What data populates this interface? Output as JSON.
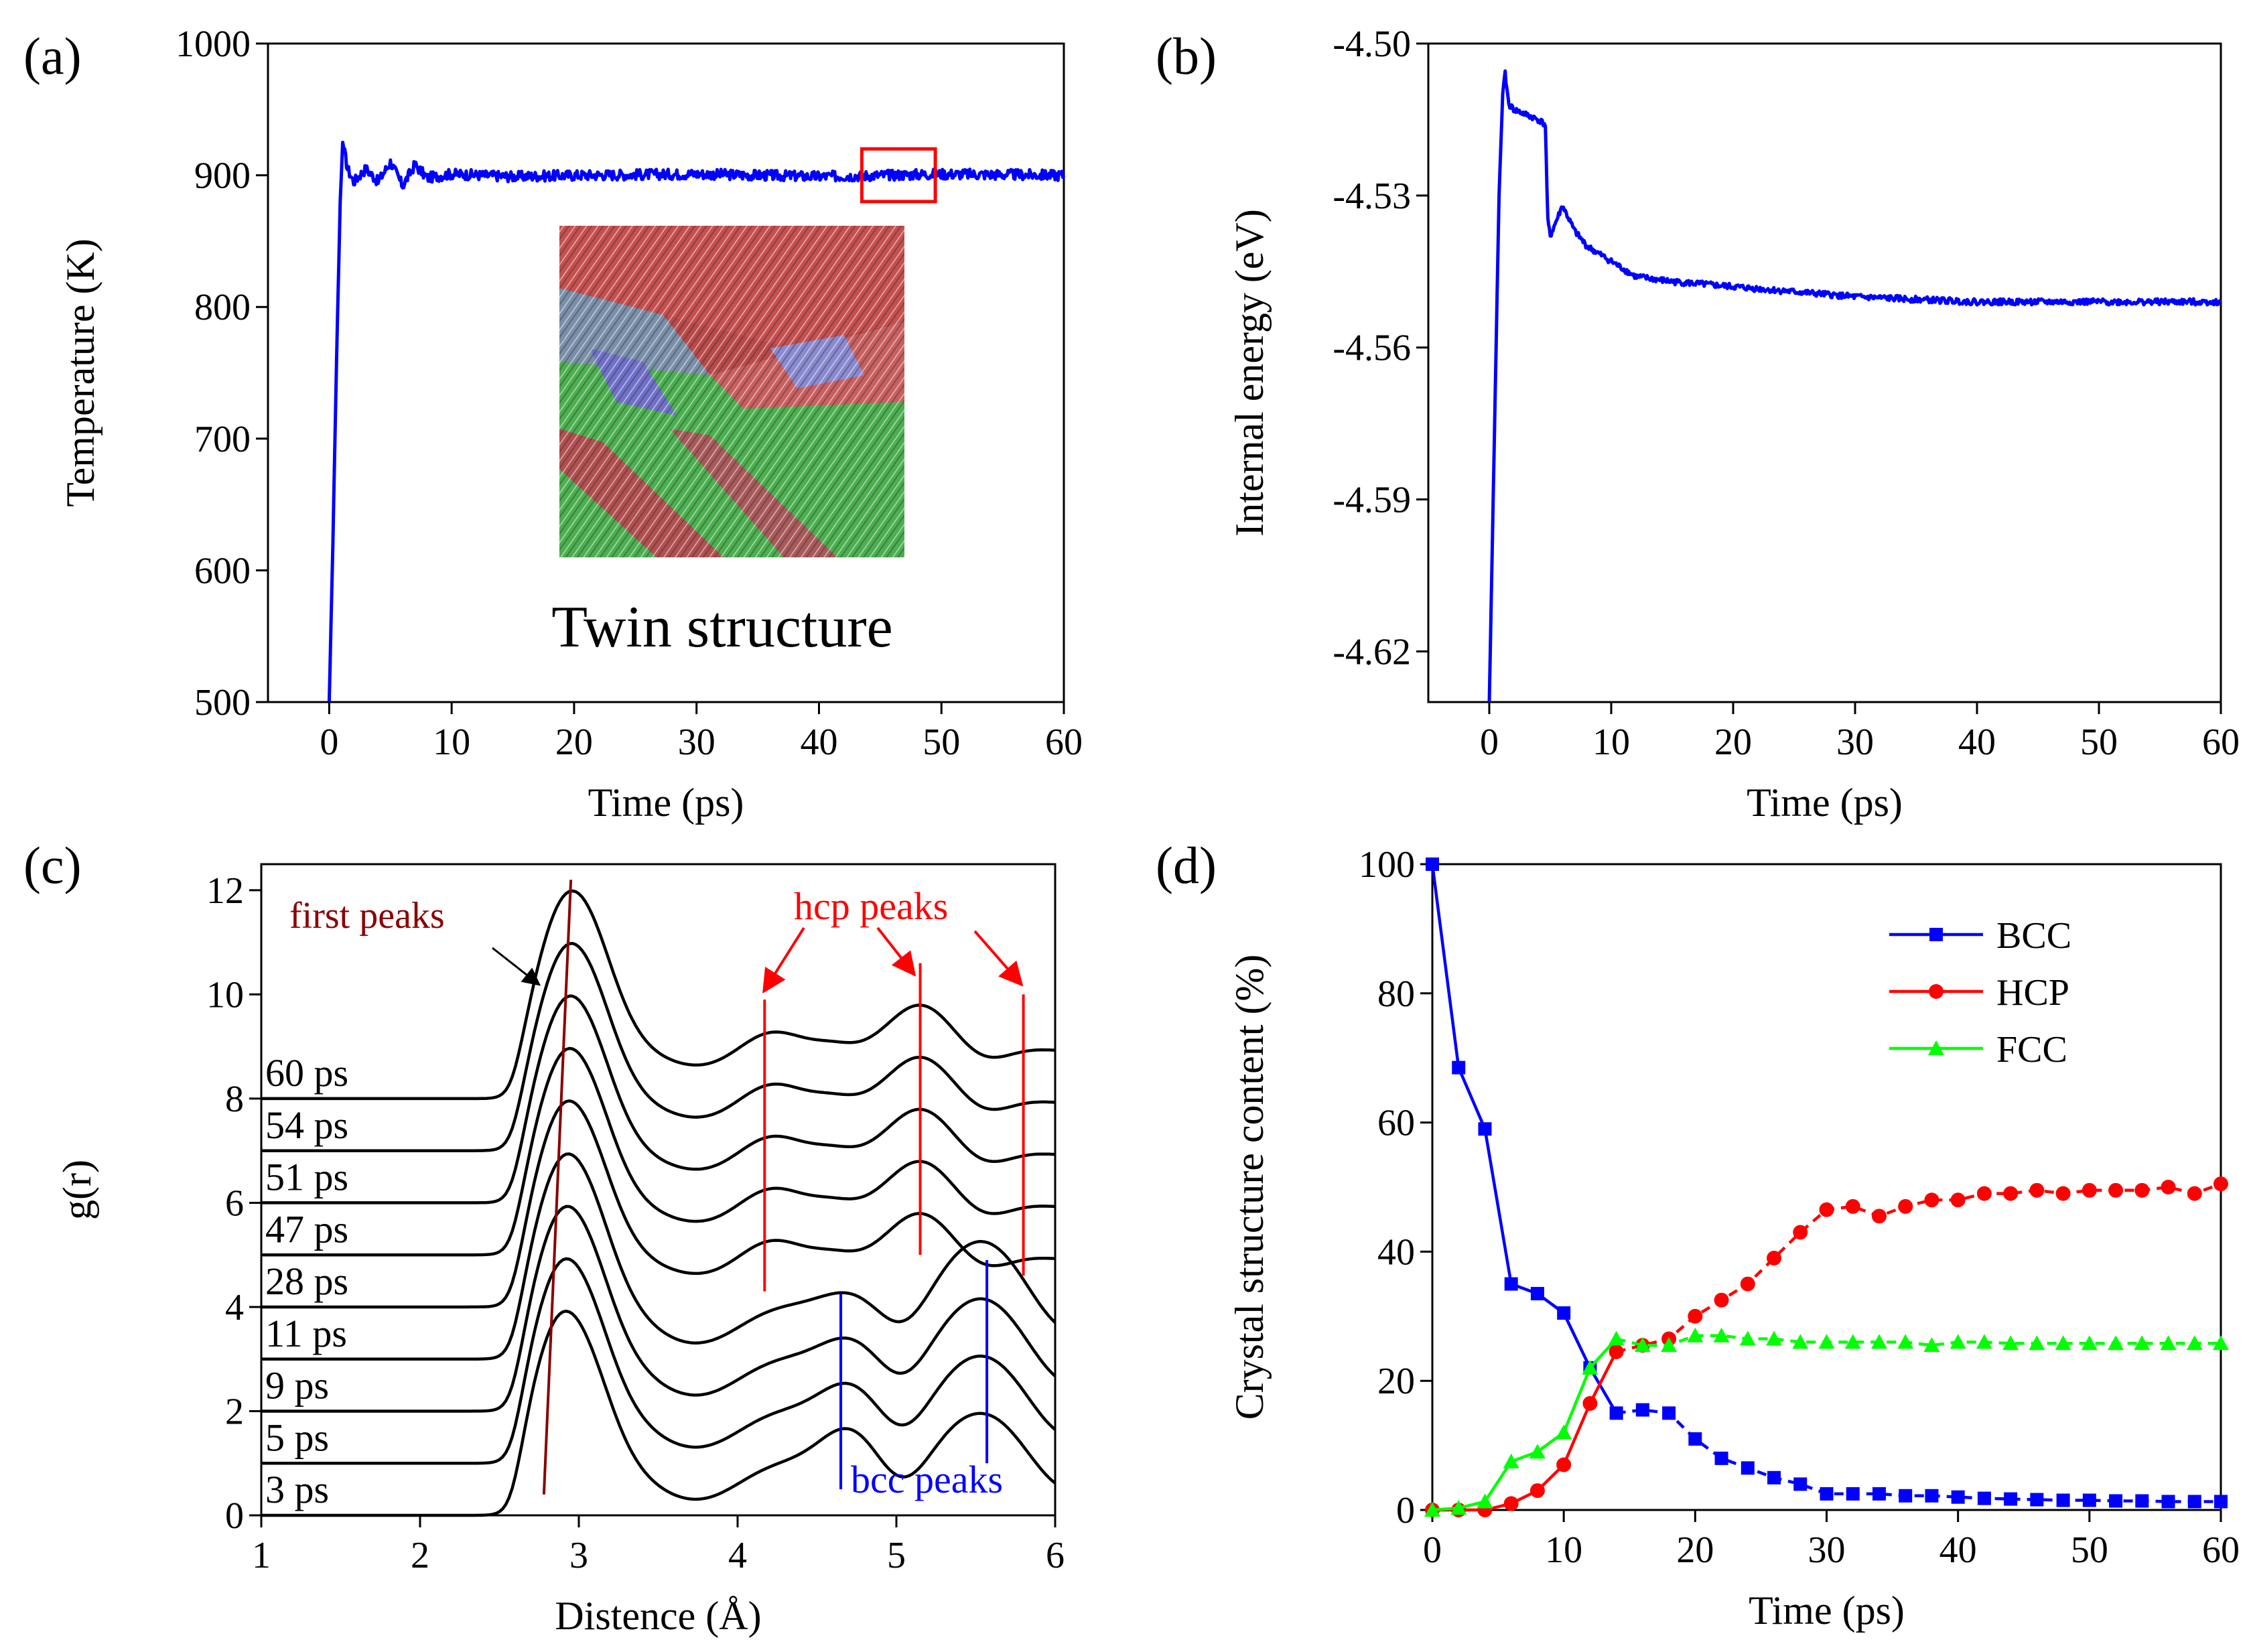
{
  "chart_data": [
    {
      "id": "a",
      "panel_label": "(a)",
      "type": "line",
      "xlabel": "Time (ps)",
      "ylabel": "Temperature (K)",
      "xlim": [
        -5,
        60
      ],
      "ylim": [
        500,
        1000
      ],
      "xticks": [
        0,
        10,
        20,
        30,
        40,
        50,
        60
      ],
      "yticks": [
        500,
        600,
        700,
        800,
        900,
        1000
      ],
      "xtick_labels": [
        "0",
        "10",
        "20",
        "30",
        "40",
        "50",
        "60"
      ],
      "ytick_labels": [
        "500",
        "600",
        "700",
        "800",
        "900",
        "1000"
      ],
      "series": [
        {
          "name": "Temperature",
          "color": "#0000ff",
          "x": [
            0,
            0.3,
            0.6,
            0.9,
            1.1,
            1.5,
            2,
            3,
            4,
            5,
            6,
            7,
            8,
            10,
            15,
            20,
            30,
            40,
            50,
            60
          ],
          "y": [
            500,
            620,
            760,
            880,
            925,
            905,
            895,
            905,
            895,
            910,
            892,
            908,
            898,
            901,
            899,
            900,
            901,
            899,
            901,
            900
          ],
          "noise": 4
        }
      ],
      "inset": {
        "label": "Twin structure"
      },
      "highlight_box": {
        "x": [
          43.5,
          49.5
        ],
        "y": [
          880,
          920
        ],
        "color": "#ff0000"
      }
    },
    {
      "id": "b",
      "panel_label": "(b)",
      "type": "line",
      "xlabel": "Time (ps)",
      "ylabel": "Internal energy (eV)",
      "xlim": [
        -5,
        60
      ],
      "ylim": [
        -4.63,
        -4.5
      ],
      "xticks": [
        0,
        10,
        20,
        30,
        40,
        50,
        60
      ],
      "yticks": [
        -4.62,
        -4.59,
        -4.56,
        -4.53,
        -4.5
      ],
      "xtick_labels": [
        "0",
        "10",
        "20",
        "30",
        "40",
        "50",
        "60"
      ],
      "ytick_labels": [
        "-4.62",
        "-4.59",
        "-4.56",
        "-4.53",
        "-4.50"
      ],
      "series": [
        {
          "name": "Internal energy",
          "color": "#0000ff",
          "x": [
            0,
            0.4,
            0.8,
            1.1,
            1.3,
            1.6,
            2,
            3,
            4,
            4.6,
            4.8,
            5,
            6,
            7,
            8,
            10,
            12,
            15,
            20,
            25,
            30,
            40,
            50,
            60
          ],
          "y": [
            -4.63,
            -4.58,
            -4.53,
            -4.51,
            -4.506,
            -4.512,
            -4.513,
            -4.514,
            -4.515,
            -4.516,
            -4.535,
            -4.538,
            -4.532,
            -4.537,
            -4.54,
            -4.543,
            -4.546,
            -4.547,
            -4.548,
            -4.549,
            -4.55,
            -4.551,
            -4.551,
            -4.551
          ],
          "noise": 0.0006
        }
      ]
    },
    {
      "id": "c",
      "panel_label": "(c)",
      "type": "line",
      "xlabel": "Distence (Å)",
      "ylabel": "g(r)",
      "xlim": [
        1,
        6
      ],
      "ylim": [
        0,
        12.5
      ],
      "xticks": [
        1,
        2,
        3,
        4,
        5,
        6
      ],
      "yticks": [
        0,
        2,
        4,
        6,
        8,
        10,
        12
      ],
      "xtick_labels": [
        "1",
        "2",
        "3",
        "4",
        "5",
        "6"
      ],
      "ytick_labels": [
        "0",
        "2",
        "4",
        "6",
        "8",
        "10",
        "12"
      ],
      "series": [
        {
          "name": "3 ps",
          "offset": 0,
          "structure": "bcc"
        },
        {
          "name": "5 ps",
          "offset": 1,
          "structure": "bcc"
        },
        {
          "name": "9 ps",
          "offset": 2,
          "structure": "bcc"
        },
        {
          "name": "11 ps",
          "offset": 3,
          "structure": "bcc"
        },
        {
          "name": "28 ps",
          "offset": 4,
          "structure": "hcp"
        },
        {
          "name": "47 ps",
          "offset": 5,
          "structure": "hcp"
        },
        {
          "name": "51 ps",
          "offset": 6,
          "structure": "hcp"
        },
        {
          "name": "54 ps",
          "offset": 7,
          "structure": "hcp"
        },
        {
          "name": "60 ps",
          "offset": 8,
          "structure": "hcp"
        }
      ],
      "annotations": {
        "first_peaks": {
          "text": "first peaks",
          "color": "#8b0000",
          "line": [
            [
              2.78,
              0.4
            ],
            [
              2.95,
              12.2
            ]
          ]
        },
        "hcp_peaks": {
          "text": "hcp peaks",
          "color": "#ff0000",
          "lines": [
            [
              4.17,
              4.3,
              9.9
            ],
            [
              5.15,
              5.0,
              10.6
            ],
            [
              5.8,
              4.6,
              10.0
            ]
          ]
        },
        "bcc_peaks": {
          "text": "bcc peaks",
          "color": "#0000ff",
          "lines": [
            [
              4.65,
              0.5,
              4.25
            ],
            [
              5.57,
              1.0,
              4.9
            ]
          ]
        }
      }
    },
    {
      "id": "d",
      "panel_label": "(d)",
      "type": "line",
      "xlabel": "Time (ps)",
      "ylabel": "Crystal structure content (%)",
      "xlim": [
        0,
        60
      ],
      "ylim": [
        0,
        100
      ],
      "xticks": [
        0,
        10,
        20,
        30,
        40,
        50,
        60
      ],
      "yticks": [
        0,
        20,
        40,
        60,
        80,
        100
      ],
      "xtick_labels": [
        "0",
        "10",
        "20",
        "30",
        "40",
        "50",
        "60"
      ],
      "ytick_labels": [
        "0",
        "20",
        "40",
        "60",
        "80",
        "100"
      ],
      "legend_position": "top-right",
      "x": [
        0,
        2,
        4,
        6,
        8,
        10,
        12,
        14,
        16,
        18,
        20,
        22,
        24,
        26,
        28,
        30,
        32,
        34,
        36,
        38,
        40,
        42,
        44,
        46,
        48,
        50,
        52,
        54,
        56,
        58,
        60
      ],
      "series": [
        {
          "name": "BCC",
          "color": "#0000ff",
          "marker": "square",
          "values": [
            100,
            68.5,
            59,
            35,
            33.5,
            30.5,
            22,
            15,
            15.5,
            15,
            11,
            8,
            6.5,
            5,
            4,
            2.5,
            2.5,
            2.5,
            2.2,
            2.2,
            2,
            1.8,
            1.7,
            1.6,
            1.5,
            1.5,
            1.4,
            1.4,
            1.3,
            1.3,
            1.3
          ]
        },
        {
          "name": "HCP",
          "color": "#ff0000",
          "marker": "circle",
          "values": [
            0,
            0,
            0,
            1,
            3,
            7,
            16.5,
            24.5,
            25.5,
            26.5,
            30,
            32.5,
            35,
            39,
            43,
            46.5,
            47,
            45.5,
            47,
            48,
            48,
            49,
            49,
            49.5,
            49,
            49.5,
            49.5,
            49.5,
            50,
            49,
            50.5
          ]
        },
        {
          "name": "FCC",
          "color": "#00ff00",
          "marker": "triangle",
          "values": [
            0,
            0.3,
            1.3,
            7.5,
            9,
            12,
            22,
            26.5,
            25.5,
            25.5,
            27,
            27,
            26.5,
            26.5,
            26,
            26,
            26,
            26,
            26,
            25.5,
            26,
            26,
            25.8,
            25.8,
            25.8,
            25.8,
            25.8,
            25.8,
            25.8,
            25.8,
            25.8
          ]
        }
      ]
    }
  ]
}
